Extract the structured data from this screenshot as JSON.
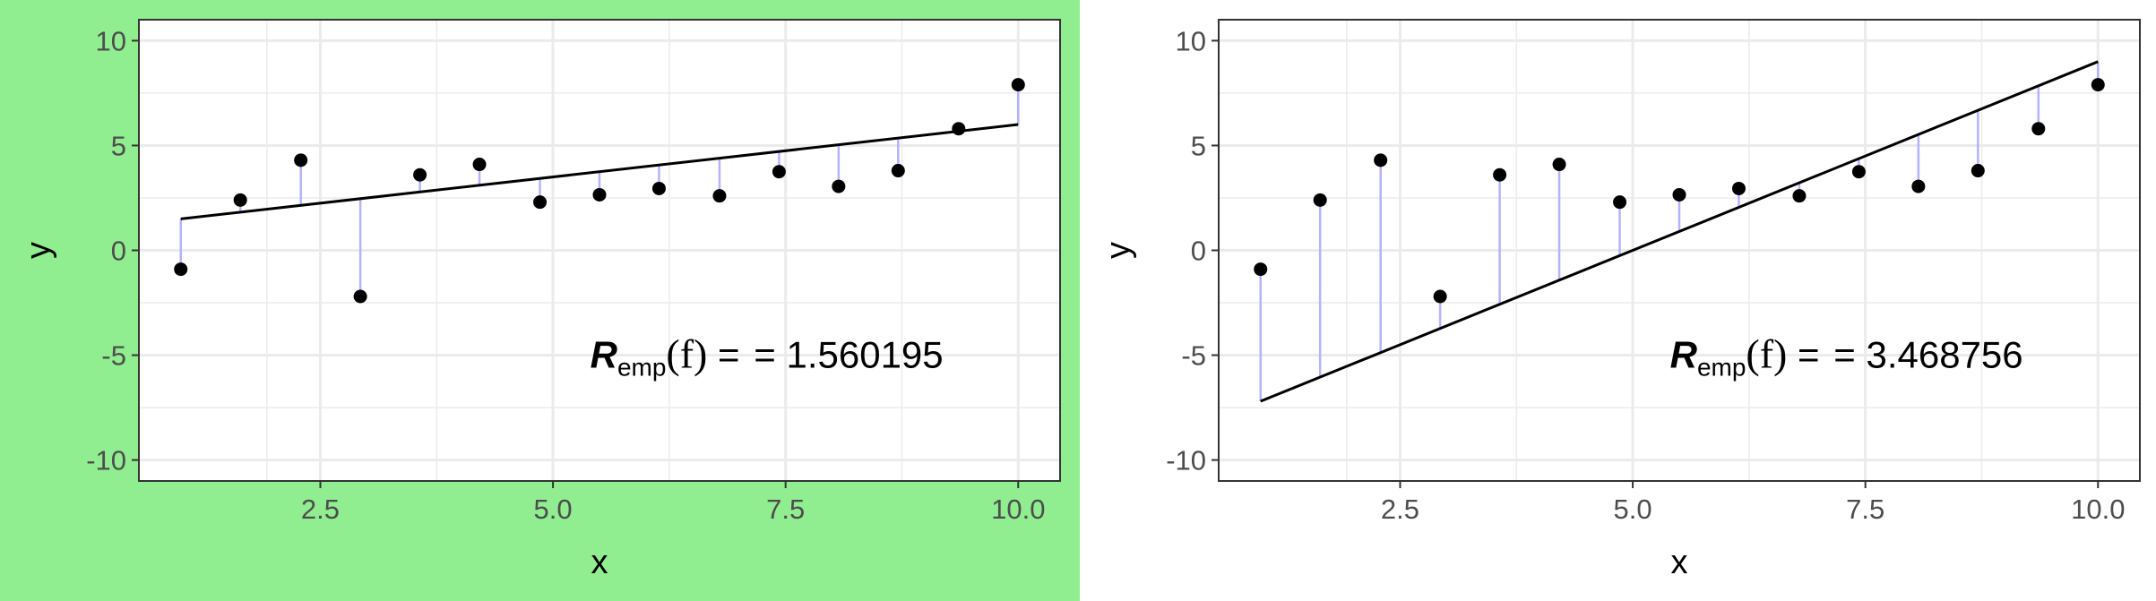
{
  "colors": {
    "highlight_background": "#90ee90",
    "residual": "#b3b3ff",
    "grid": "#ebebeb",
    "line": "#000000",
    "points": "#000000"
  },
  "chart_data": [
    {
      "type": "scatter",
      "highlighted": true,
      "xlabel": "x",
      "ylabel": "y",
      "xlim": [
        0.55,
        10.45
      ],
      "ylim": [
        -11,
        11
      ],
      "xticks": [
        "2.5",
        "5.0",
        "7.5",
        "10.0"
      ],
      "xtick_values": [
        2.5,
        5.0,
        7.5,
        10.0
      ],
      "yticks": [
        "10",
        "5",
        "0",
        "-5",
        "-10"
      ],
      "ytick_values": [
        10,
        5,
        0,
        -5,
        -10
      ],
      "grid": true,
      "points": {
        "x": [
          1.0,
          1.64,
          2.29,
          2.93,
          3.57,
          4.21,
          4.86,
          5.5,
          6.14,
          6.79,
          7.43,
          8.07,
          8.71,
          9.36,
          10.0
        ],
        "y": [
          -0.9,
          2.4,
          4.3,
          -2.2,
          3.6,
          4.1,
          2.3,
          2.65,
          2.95,
          2.6,
          3.75,
          3.05,
          3.8,
          5.8,
          7.9
        ]
      },
      "fit_line": {
        "x": [
          1.0,
          10.0
        ],
        "y": [
          1.5,
          6.0
        ]
      },
      "annotation": {
        "R": "R",
        "sub": "emp",
        "arg": "(f)",
        "eq": " = ",
        "value": "= 1.560195"
      }
    },
    {
      "type": "scatter",
      "highlighted": false,
      "xlabel": "x",
      "ylabel": "y",
      "xlim": [
        0.55,
        10.45
      ],
      "ylim": [
        -11,
        11
      ],
      "xticks": [
        "2.5",
        "5.0",
        "7.5",
        "10.0"
      ],
      "xtick_values": [
        2.5,
        5.0,
        7.5,
        10.0
      ],
      "yticks": [
        "10",
        "5",
        "0",
        "-5",
        "-10"
      ],
      "ytick_values": [
        10,
        5,
        0,
        -5,
        -10
      ],
      "grid": true,
      "points": {
        "x": [
          1.0,
          1.64,
          2.29,
          2.93,
          3.57,
          4.21,
          4.86,
          5.5,
          6.14,
          6.79,
          7.43,
          8.07,
          8.71,
          9.36,
          10.0
        ],
        "y": [
          -0.9,
          2.4,
          4.3,
          -2.2,
          3.6,
          4.1,
          2.3,
          2.65,
          2.95,
          2.6,
          3.75,
          3.05,
          3.8,
          5.8,
          7.9
        ]
      },
      "fit_line": {
        "x": [
          1.0,
          10.0
        ],
        "y": [
          -7.2,
          9.0
        ]
      },
      "annotation": {
        "R": "R",
        "sub": "emp",
        "arg": "(f)",
        "eq": " = ",
        "value": "= 3.468756"
      }
    }
  ]
}
